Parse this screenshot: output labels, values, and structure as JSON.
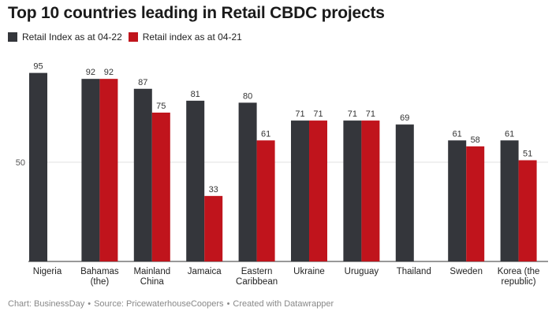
{
  "title": "Top 10 countries leading in Retail CBDC projects",
  "colors": {
    "series_1": "#34363b",
    "series_2": "#c0141c",
    "grid": "#e0e0e0",
    "axis": "#333333"
  },
  "footer": {
    "chart_credit": "Chart: BusinessDay",
    "source": "Source: PricewaterhouseCoopers",
    "created_with": "Created with Datawrapper"
  },
  "chart_data": {
    "type": "bar",
    "categories": [
      [
        "Nigeria"
      ],
      [
        "Bahamas",
        "(the)"
      ],
      [
        "Mainland",
        "China"
      ],
      [
        "Jamaica"
      ],
      [
        "Eastern",
        "Caribbean"
      ],
      [
        "Ukraine"
      ],
      [
        "Uruguay"
      ],
      [
        "Thailand"
      ],
      [
        "Sweden"
      ],
      [
        "Korea (the",
        "republic)"
      ]
    ],
    "series": [
      {
        "name": "Retail Index as at 04-22",
        "color": "#34363b",
        "values": [
          95,
          92,
          87,
          81,
          80,
          71,
          71,
          69,
          61,
          61
        ]
      },
      {
        "name": "Retail index as at 04-21",
        "color": "#c0141c",
        "values": [
          null,
          92,
          75,
          33,
          61,
          71,
          71,
          null,
          58,
          51
        ]
      }
    ],
    "yticks": [
      50
    ],
    "ylim": [
      0,
      100
    ],
    "grid": true,
    "legend_position": "top-left"
  }
}
